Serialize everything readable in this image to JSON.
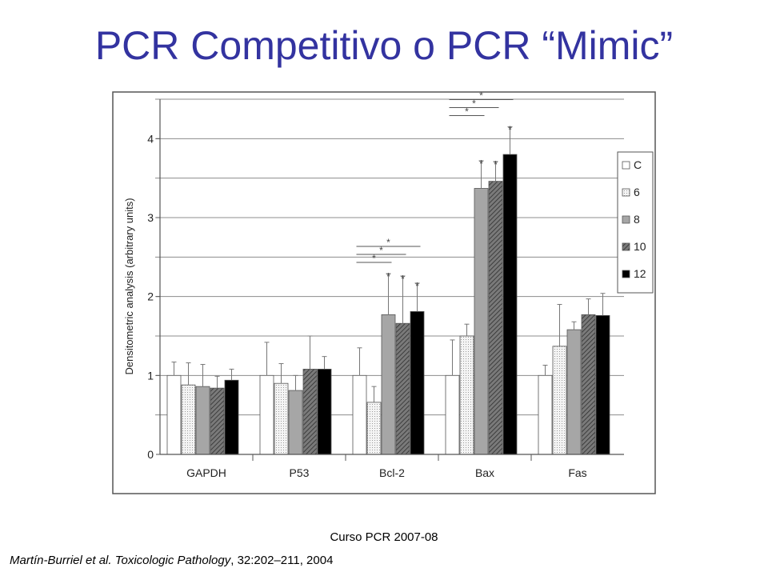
{
  "slide": {
    "title": "PCR Competitivo o PCR “Mimic”",
    "course": "Curso PCR 2007-08",
    "citation_authors": "Martín-Burriel et al. Toxicologic Pathology",
    "citation_ref": ", 32:202–211, 2004"
  },
  "chart_data": {
    "type": "bar",
    "ylabel": "Densitometric analysis (arbitrary units)",
    "xlabel": "",
    "ylim": [
      0,
      4.5
    ],
    "yticks": [
      "0",
      "1",
      "2",
      "3",
      "4"
    ],
    "categories": [
      "GAPDH",
      "P53",
      "Bcl-2",
      "Bax",
      "Fas"
    ],
    "grid": true,
    "legend_position": "right",
    "series": [
      {
        "name": "C",
        "values": [
          1.0,
          1.0,
          1.0,
          1.0,
          1.0
        ],
        "errors": [
          0.17,
          0.42,
          0.35,
          0.45,
          0.13
        ],
        "fill": "#ffffff",
        "pattern": "none"
      },
      {
        "name": "6",
        "values": [
          0.88,
          0.9,
          0.66,
          1.5,
          1.37
        ],
        "errors": [
          0.28,
          0.25,
          0.2,
          0.15,
          0.53
        ],
        "fill": "#f2f2f2",
        "pattern": "dots"
      },
      {
        "name": "8",
        "values": [
          0.86,
          0.81,
          1.77,
          3.37,
          1.58
        ],
        "errors": [
          0.28,
          0.19,
          0.52,
          0.35,
          0.1
        ],
        "fill": "#a6a6a6",
        "pattern": "none"
      },
      {
        "name": "10",
        "values": [
          0.84,
          1.08,
          1.66,
          3.46,
          1.77
        ],
        "errors": [
          0.15,
          0.42,
          0.6,
          0.25,
          0.2
        ],
        "fill": "#808080",
        "pattern": "hatch"
      },
      {
        "name": "12",
        "values": [
          0.94,
          1.08,
          1.81,
          3.8,
          1.76
        ],
        "errors": [
          0.14,
          0.16,
          0.36,
          0.35,
          0.28
        ],
        "fill": "#000000",
        "pattern": "none"
      }
    ],
    "significance_marks": [
      {
        "category": "Bcl-2",
        "series": [
          "8",
          "10",
          "12"
        ],
        "above_bar_label": "*",
        "brackets": [
          {
            "from": "C",
            "to": "8",
            "label": "*"
          },
          {
            "from": "C",
            "to": "10",
            "label": "*"
          },
          {
            "from": "C",
            "to": "12",
            "label": "*"
          }
        ]
      },
      {
        "category": "Bax",
        "series": [
          "8",
          "10",
          "12"
        ],
        "above_bar_label": "*",
        "brackets": [
          {
            "from": "C",
            "to": "8",
            "label": "*"
          },
          {
            "from": "C",
            "to": "10",
            "label": "*"
          },
          {
            "from": "C",
            "to": "12",
            "label": "*"
          }
        ]
      }
    ]
  }
}
